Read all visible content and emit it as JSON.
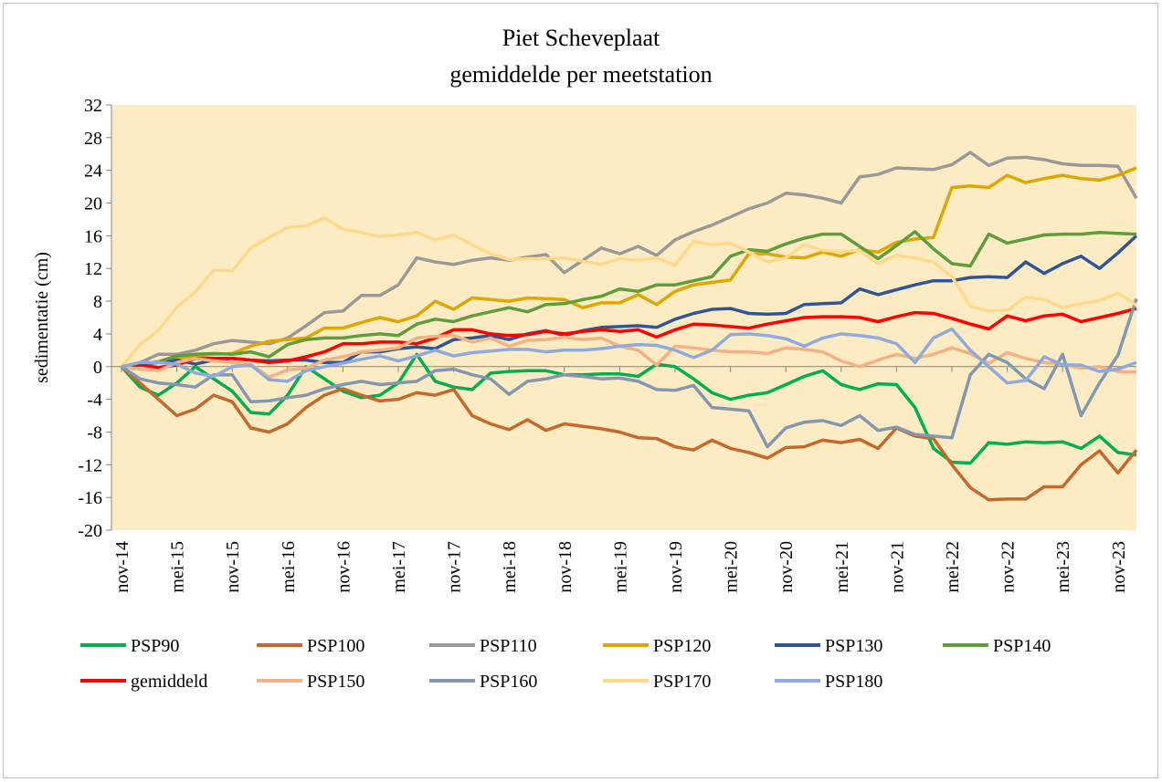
{
  "chart_data": {
    "type": "line",
    "title": "Piet Scheveplaat",
    "subtitle": "gemiddelde per meetstation",
    "y_label": "sedimentatie (cm)",
    "categories": [
      "nov-14",
      null,
      null,
      "mei-15",
      null,
      null,
      "nov-15",
      null,
      null,
      "mei-16",
      null,
      null,
      "nov-16",
      null,
      null,
      "mei-17",
      null,
      null,
      "nov-17",
      null,
      null,
      "mei-18",
      null,
      null,
      "nov-18",
      null,
      null,
      "mei-19",
      null,
      null,
      "nov-19",
      null,
      null,
      "mei-20",
      null,
      null,
      "nov-20",
      null,
      null,
      "mei-21",
      null,
      null,
      "nov-21",
      null,
      null,
      "mei-22",
      null,
      null,
      "nov-22",
      null,
      null,
      "mei-23",
      null,
      null,
      "nov-23",
      null
    ],
    "ylim": [
      -20,
      32
    ],
    "yticks": [
      -20,
      -16,
      -12,
      -8,
      -4,
      0,
      4,
      8,
      12,
      16,
      20,
      24,
      28,
      32
    ],
    "grid": false,
    "plot_background": "#fdebc4",
    "series": [
      {
        "name": "PSP90",
        "color": "#00b050",
        "values": [
          0,
          -2.5,
          -3.5,
          -2,
          0,
          -1.5,
          -3,
          -5.6,
          -5.8,
          -3.5,
          0,
          -1.5,
          -3,
          -3.8,
          -3.5,
          -2,
          1.5,
          -1.8,
          -2.5,
          -2.8,
          -0.8,
          -0.6,
          -0.5,
          -0.5,
          -1,
          -1,
          -0.9,
          -0.9,
          -1.2,
          0.3,
          0,
          -1.5,
          -3.2,
          -4,
          -3.5,
          -3.2,
          -2.2,
          -1.2,
          -0.5,
          -2.2,
          -2.8,
          -2.1,
          -2.2,
          -5,
          -10,
          -11.7,
          -11.8,
          -9.3,
          -9.5,
          -9.2,
          -9.3,
          -9.2,
          -10,
          -8.5,
          -10.5,
          -10.8
        ]
      },
      {
        "name": "PSP100",
        "color": "#c4692a",
        "values": [
          0,
          -2,
          -4,
          -6,
          -5.2,
          -3.5,
          -4.3,
          -7.5,
          -8,
          -7,
          -5,
          -3.5,
          -2.7,
          -3.5,
          -4.2,
          -4,
          -3.2,
          -3.5,
          -2.8,
          -6,
          -7,
          -7.7,
          -6.5,
          -7.8,
          -7,
          -7.3,
          -7.6,
          -8,
          -8.7,
          -8.8,
          -9.8,
          -10.2,
          -9,
          -10,
          -10.5,
          -11.2,
          -9.9,
          -9.8,
          -9,
          -9.3,
          -8.9,
          -10,
          -7.5,
          -8.5,
          -8.8,
          -12,
          -14.8,
          -16.3,
          -16.2,
          -16.2,
          -14.7,
          -14.7,
          -12,
          -10.3,
          -13,
          -10.2
        ]
      },
      {
        "name": "PSP110",
        "color": "#999999",
        "values": [
          0,
          0.5,
          1.5,
          1.5,
          2,
          2.8,
          3.2,
          3,
          2.8,
          3.5,
          5,
          6.6,
          6.8,
          8.7,
          8.7,
          10,
          13.3,
          12.8,
          12.5,
          13,
          13.3,
          13,
          13.4,
          13.7,
          11.5,
          13,
          14.5,
          13.8,
          14.7,
          13.6,
          15.5,
          16.5,
          17.3,
          18.3,
          19.3,
          20,
          21.2,
          21,
          20.6,
          20,
          23.2,
          23.5,
          24.3,
          24.2,
          24.1,
          24.7,
          26.2,
          24.6,
          25.5,
          25.6,
          25.3,
          24.8,
          24.6,
          24.6,
          24.5,
          20.6
        ]
      },
      {
        "name": "PSP120",
        "color": "#dca800",
        "values": [
          0,
          0.3,
          0.5,
          1,
          1.3,
          1.5,
          1.6,
          2.5,
          3.1,
          3.3,
          3.5,
          4.7,
          4.7,
          5.4,
          6,
          5.5,
          6.2,
          8,
          7,
          8.4,
          8.2,
          8,
          8.4,
          8.3,
          8.2,
          7.2,
          7.8,
          7.8,
          8.8,
          7.6,
          9.2,
          10,
          10.3,
          10.6,
          13.8,
          13.8,
          13.4,
          13.3,
          14,
          13.5,
          14.3,
          14,
          15.2,
          15.6,
          15.8,
          21.9,
          22.1,
          21.9,
          23.4,
          22.5,
          23,
          23.4,
          23,
          22.8,
          23.4,
          24.3
        ]
      },
      {
        "name": "PSP130",
        "color": "#2f5597",
        "values": [
          0,
          0.3,
          0.5,
          0.8,
          0.3,
          0.8,
          1,
          0.8,
          0.7,
          0.8,
          0.8,
          0.5,
          0.5,
          1.8,
          1.8,
          2.2,
          2.4,
          2.2,
          3.3,
          3.5,
          3.8,
          3.3,
          4,
          4.4,
          3.8,
          4.4,
          4.8,
          4.9,
          5,
          4.8,
          5.8,
          6.5,
          7,
          7.1,
          6.5,
          6.4,
          6.5,
          7.6,
          7.7,
          7.8,
          9.5,
          8.8,
          9.4,
          10,
          10.5,
          10.5,
          10.9,
          11,
          10.9,
          12.8,
          11.4,
          12.6,
          13.5,
          12,
          13.9,
          16
        ]
      },
      {
        "name": "PSP140",
        "color": "#5e9e3a",
        "values": [
          0,
          0.3,
          0.6,
          1.3,
          1.5,
          1.6,
          1.5,
          1.8,
          1.2,
          2.7,
          3.3,
          3.5,
          3.5,
          3.8,
          4,
          3.8,
          5.2,
          5.8,
          5.5,
          6.2,
          6.7,
          7.2,
          6.7,
          7.6,
          7.7,
          8.2,
          8.6,
          9.5,
          9.2,
          10,
          10,
          10.5,
          11,
          13.5,
          14.3,
          14.1,
          15,
          15.7,
          16.2,
          16.2,
          14.7,
          13.2,
          14.8,
          16.5,
          14.4,
          12.6,
          12.3,
          16.2,
          15.1,
          15.6,
          16.1,
          16.2,
          16.2,
          16.4,
          16.3,
          16.2
        ]
      },
      {
        "name": "gemiddeld",
        "color": "#ff0000",
        "values": [
          0,
          0.2,
          -0.1,
          0.2,
          1,
          1,
          1,
          0.8,
          0.5,
          0.7,
          1.2,
          1.8,
          2.8,
          2.8,
          3,
          3,
          2.8,
          3.5,
          4.5,
          4.5,
          4,
          3.8,
          3.9,
          4.3,
          4,
          4.3,
          4.5,
          4.3,
          4.5,
          3.6,
          4.5,
          5.2,
          5.1,
          4.9,
          4.7,
          5.2,
          5.6,
          6,
          6.1,
          6.1,
          6,
          5.5,
          6.1,
          6.6,
          6.5,
          5.9,
          5.2,
          4.6,
          6.2,
          5.6,
          6.2,
          6.4,
          5.5,
          6,
          6.5,
          7.1
        ]
      },
      {
        "name": "PSP150",
        "color": "#f4b183",
        "values": [
          0,
          -0.3,
          -0.5,
          0.5,
          1,
          0.7,
          0.5,
          0.3,
          -1.3,
          -0.4,
          -0.2,
          0.8,
          1.2,
          1.8,
          2,
          2.3,
          3.5,
          3.7,
          3.8,
          3,
          3.5,
          2.5,
          3.2,
          3.3,
          3.6,
          3.3,
          3.5,
          2.5,
          2,
          0.2,
          2.5,
          2.3,
          2,
          1.8,
          1.8,
          1.6,
          2.3,
          2.1,
          1.8,
          0.7,
          0,
          0.8,
          1.5,
          1,
          1.5,
          2.3,
          1.6,
          0.4,
          1.7,
          1,
          0.5,
          0.3,
          -0.2,
          0,
          -0.6,
          -0.7
        ]
      },
      {
        "name": "PSP160",
        "color": "#8497b0",
        "values": [
          0,
          -1.5,
          -2,
          -2.2,
          -2.5,
          -1,
          -1,
          -4.3,
          -4.2,
          -3.8,
          -3.5,
          -2.7,
          -2.2,
          -1.8,
          -2.2,
          -2,
          -1.8,
          -0.5,
          -0.3,
          -1,
          -1.5,
          -3.4,
          -1.8,
          -1.5,
          -1,
          -1.2,
          -1.5,
          -1.4,
          -1.8,
          -2.8,
          -2.9,
          -2.3,
          -5,
          -5.2,
          -5.4,
          -9.8,
          -7.5,
          -6.8,
          -6.6,
          -7.2,
          -6,
          -7.8,
          -7.4,
          -8.3,
          -8.5,
          -8.7,
          -1,
          1.5,
          0.5,
          -1.5,
          -2.7,
          1.5,
          -6,
          -2,
          1.4,
          8.3
        ]
      },
      {
        "name": "PSP170",
        "color": "#ffd98a",
        "values": [
          0,
          2.7,
          4.4,
          7.3,
          9.1,
          11.8,
          11.7,
          14.5,
          15.8,
          17,
          17.2,
          18.2,
          16.8,
          16.4,
          15.9,
          16.1,
          16.4,
          15.5,
          16.1,
          14.9,
          13.8,
          13.1,
          13.2,
          13.2,
          13.3,
          12.9,
          12.5,
          13.2,
          13,
          13.3,
          12.4,
          15.3,
          14.9,
          15.1,
          14,
          12.8,
          13.3,
          14.9,
          14.2,
          14.1,
          14.2,
          12.6,
          13.6,
          13.3,
          12.8,
          11,
          7.4,
          6.8,
          6.9,
          8.5,
          8.2,
          7.2,
          7.7,
          8.1,
          9,
          7.5
        ]
      },
      {
        "name": "PSP180",
        "color": "#8faadc",
        "values": [
          0,
          0.5,
          0.5,
          0.3,
          -0.8,
          -1.2,
          0,
          0.2,
          -1.6,
          -1.8,
          -0.5,
          0,
          0.4,
          0.9,
          1.3,
          0.7,
          1.3,
          2,
          1.3,
          1.7,
          1.9,
          2.1,
          2.1,
          1.8,
          2,
          2,
          2.2,
          2.5,
          2.7,
          2.6,
          2,
          1.1,
          2,
          3.9,
          4,
          3.8,
          3.4,
          2.5,
          3.5,
          4,
          3.8,
          3.5,
          2.8,
          0.5,
          3.5,
          4.6,
          2,
          0,
          -2,
          -1.7,
          1.2,
          0.2,
          0.2,
          -0.6,
          -0.3,
          0.5
        ]
      }
    ]
  }
}
